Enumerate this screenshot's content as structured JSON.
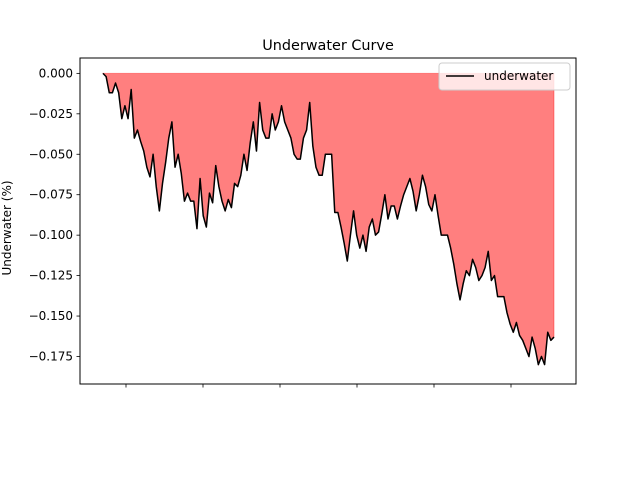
{
  "chart_data": {
    "type": "area",
    "title": "Underwater Curve",
    "xlabel": "",
    "ylabel": "Underwater (%)",
    "ylim": [
      -0.192,
      0.0095
    ],
    "y_ticks": [
      0.0,
      -0.025,
      -0.05,
      -0.075,
      -0.1,
      -0.125,
      -0.15,
      -0.175
    ],
    "y_tick_labels": [
      "0.000",
      "−0.025",
      "−0.050",
      "−0.075",
      "−0.100",
      "−0.125",
      "−0.150",
      "−0.175"
    ],
    "x_tick_count": 6,
    "x_tick_labels": [
      "",
      "",
      "",
      "",
      "",
      ""
    ],
    "legend": {
      "position": "top-right"
    },
    "grid": false,
    "series": [
      {
        "name": "underwater",
        "color": "#000000",
        "fill_color": "#ff0000",
        "fill_alpha": 0.5,
        "values": [
          0.0,
          -0.002,
          -0.012,
          -0.012,
          -0.006,
          -0.012,
          -0.028,
          -0.02,
          -0.028,
          -0.01,
          -0.04,
          -0.035,
          -0.042,
          -0.048,
          -0.058,
          -0.064,
          -0.05,
          -0.07,
          -0.085,
          -0.068,
          -0.055,
          -0.04,
          -0.03,
          -0.058,
          -0.05,
          -0.062,
          -0.079,
          -0.074,
          -0.079,
          -0.079,
          -0.096,
          -0.065,
          -0.088,
          -0.095,
          -0.074,
          -0.08,
          -0.057,
          -0.07,
          -0.079,
          -0.085,
          -0.078,
          -0.083,
          -0.068,
          -0.07,
          -0.063,
          -0.05,
          -0.06,
          -0.043,
          -0.03,
          -0.048,
          -0.018,
          -0.035,
          -0.04,
          -0.04,
          -0.025,
          -0.035,
          -0.03,
          -0.02,
          -0.03,
          -0.035,
          -0.04,
          -0.05,
          -0.053,
          -0.053,
          -0.04,
          -0.035,
          -0.018,
          -0.045,
          -0.058,
          -0.063,
          -0.063,
          -0.05,
          -0.05,
          -0.05,
          -0.086,
          -0.086,
          -0.095,
          -0.105,
          -0.116,
          -0.1,
          -0.085,
          -0.1,
          -0.108,
          -0.1,
          -0.11,
          -0.095,
          -0.09,
          -0.1,
          -0.098,
          -0.087,
          -0.075,
          -0.09,
          -0.082,
          -0.082,
          -0.09,
          -0.082,
          -0.075,
          -0.07,
          -0.065,
          -0.073,
          -0.085,
          -0.075,
          -0.063,
          -0.07,
          -0.081,
          -0.085,
          -0.075,
          -0.088,
          -0.1,
          -0.1,
          -0.1,
          -0.108,
          -0.118,
          -0.13,
          -0.14,
          -0.13,
          -0.122,
          -0.125,
          -0.115,
          -0.12,
          -0.128,
          -0.125,
          -0.12,
          -0.11,
          -0.128,
          -0.125,
          -0.138,
          -0.138,
          -0.138,
          -0.148,
          -0.155,
          -0.16,
          -0.154,
          -0.162,
          -0.165,
          -0.17,
          -0.175,
          -0.163,
          -0.17,
          -0.18,
          -0.175,
          -0.18,
          -0.16,
          -0.165,
          -0.163
        ]
      }
    ]
  }
}
